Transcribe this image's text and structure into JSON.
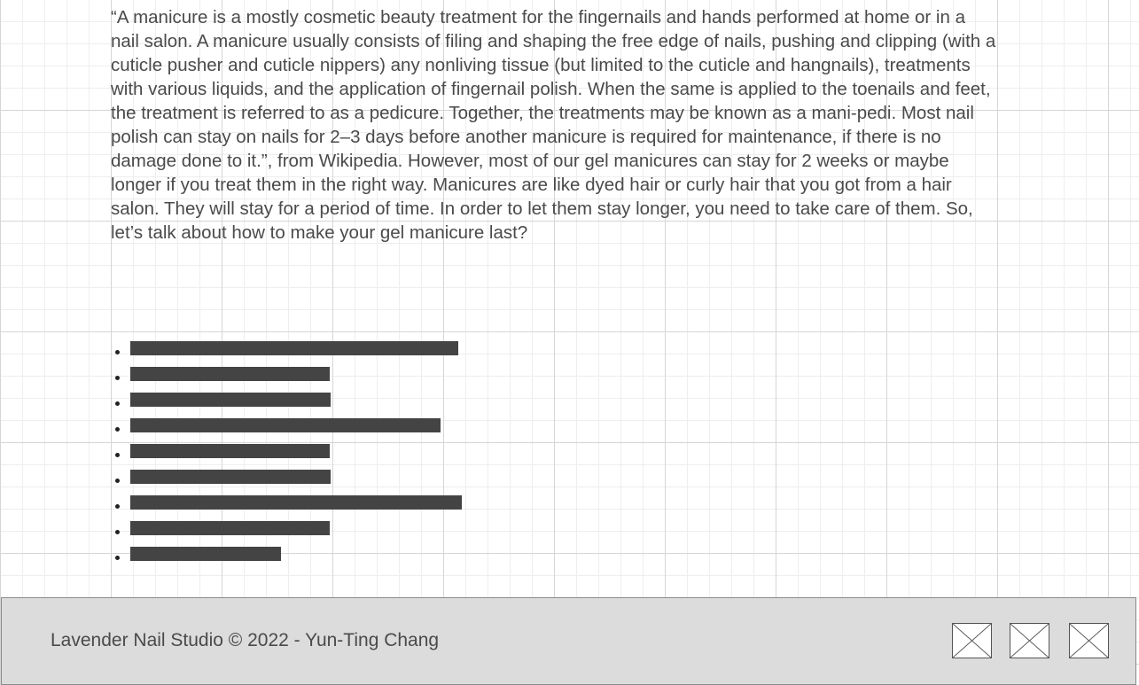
{
  "article": {
    "paragraph": "“A manicure is a mostly cosmetic beauty treatment for the fingernails and hands performed at home or in a nail salon. A manicure usually consists of filing and shaping the free edge of nails, pushing and clipping (with a cuticle pusher and cuticle nippers) any nonliving tissue (but limited to the cuticle and hangnails), treatments with various liquids, and the application of fingernail polish. When the same is applied to the toenails and feet, the treatment is referred to as a pedicure. Together, the treatments may be known as a mani-pedi. Most nail polish can stay on nails for 2–3 days before another manicure is required for maintenance, if there is no damage done to it.”, from Wikipedia. However, most of our gel manicures can stay for 2 weeks or maybe longer if you treat them in the right way. Manicures are like dyed hair or curly hair that you got from a hair salon. They will stay for a period of time. In order to let them stay longer, you need to take care of them. So, let’s talk about how to make your gel manicure last?"
  },
  "placeholder_colors": {
    "bar": "#444444",
    "footer_bg": "#dcdcdc"
  },
  "footer": {
    "copyright": "Lavender Nail Studio © 2022 - Yun-Ting Chang",
    "social_icons": [
      "image-placeholder-icon",
      "image-placeholder-icon",
      "image-placeholder-icon"
    ]
  }
}
